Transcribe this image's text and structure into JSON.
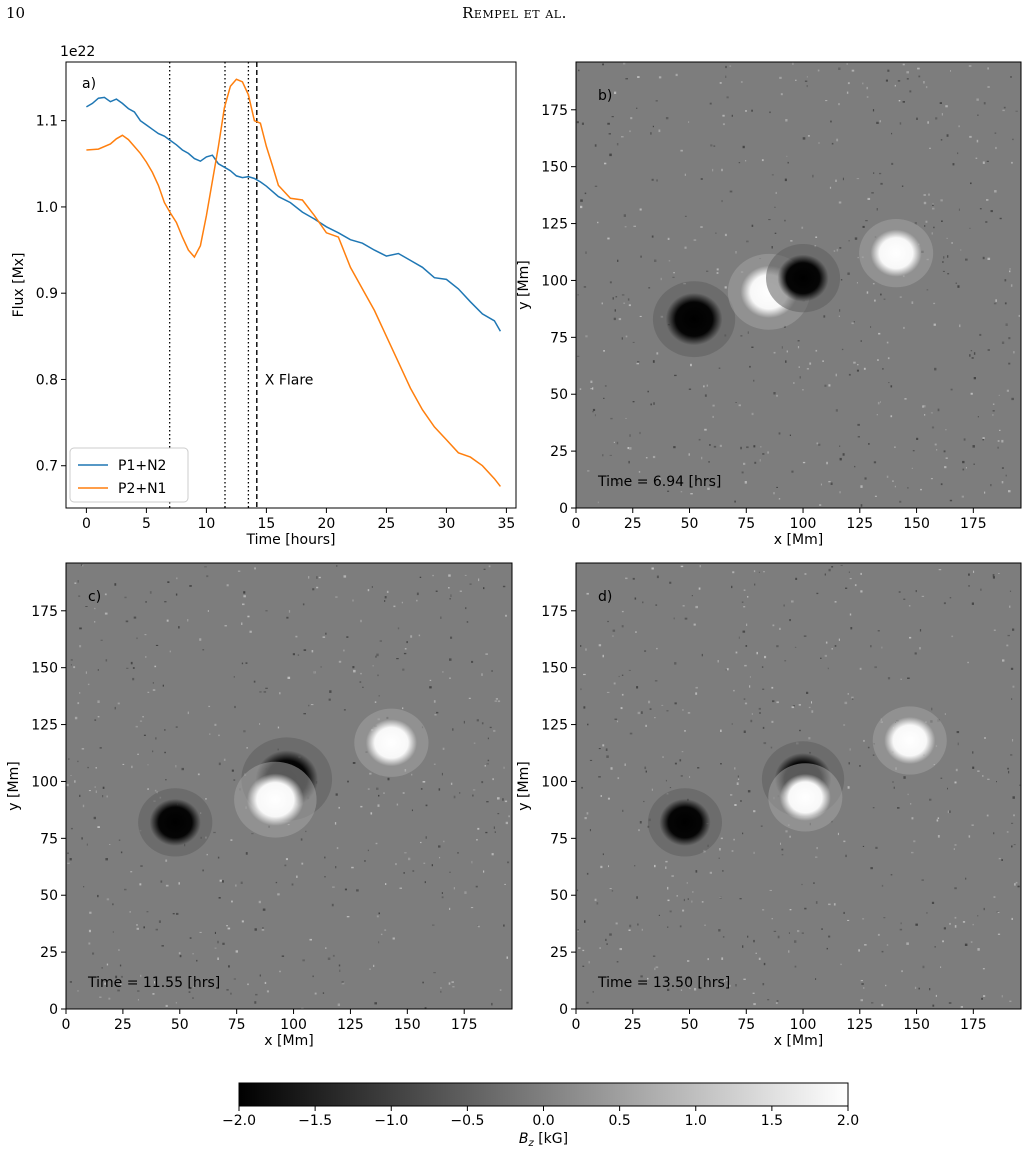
{
  "page": {
    "number": "10",
    "running_head": "Rempel et al."
  },
  "chart_data": [
    {
      "panel": "a)",
      "type": "line",
      "xlabel": "Time [hours]",
      "ylabel": "Flux [Mx]",
      "y_offset_label": "1e22",
      "xlim": [
        -1.7,
        35.8
      ],
      "ylim": [
        0.651,
        1.168
      ],
      "x_ticks": [
        0,
        5,
        10,
        15,
        20,
        25,
        30,
        35
      ],
      "y_ticks": [
        0.7,
        0.8,
        0.9,
        1.0,
        1.1
      ],
      "legend_location": "lower-left",
      "vlines_dotted": [
        6.94,
        11.55,
        13.5
      ],
      "vline_dashed": 14.2,
      "annotation": "X Flare",
      "series": [
        {
          "name": "P1+N2",
          "color": "#1f77b4",
          "x": [
            0,
            0.5,
            1,
            1.5,
            2,
            2.5,
            3,
            3.5,
            4,
            4.5,
            5,
            5.5,
            6,
            6.5,
            7,
            7.5,
            8,
            8.5,
            9,
            9.5,
            10,
            10.5,
            11,
            11.5,
            12,
            12.5,
            13,
            13.5,
            14,
            14.5,
            15,
            16,
            17,
            18,
            19,
            20,
            21,
            22,
            23,
            24,
            25,
            26,
            27,
            28,
            29,
            30,
            31,
            32,
            33,
            34,
            34.5
          ],
          "values": [
            1.116,
            1.12,
            1.126,
            1.127,
            1.122,
            1.125,
            1.12,
            1.114,
            1.11,
            1.1,
            1.095,
            1.09,
            1.085,
            1.082,
            1.077,
            1.072,
            1.066,
            1.062,
            1.056,
            1.053,
            1.058,
            1.06,
            1.05,
            1.046,
            1.042,
            1.036,
            1.034,
            1.035,
            1.033,
            1.029,
            1.024,
            1.012,
            1.005,
            0.994,
            0.986,
            0.977,
            0.97,
            0.962,
            0.958,
            0.95,
            0.943,
            0.946,
            0.938,
            0.93,
            0.918,
            0.916,
            0.905,
            0.89,
            0.876,
            0.868,
            0.856
          ]
        },
        {
          "name": "P2+N1",
          "color": "#ff7f0e",
          "x": [
            0,
            1,
            2,
            2.5,
            3,
            3.5,
            4,
            4.5,
            5,
            5.5,
            6,
            6.5,
            7,
            7.5,
            8,
            8.5,
            9,
            9.5,
            10,
            10.5,
            11,
            11.5,
            12,
            12.5,
            13,
            13.5,
            14,
            14.5,
            15,
            15.5,
            16,
            17,
            18,
            19,
            20,
            21,
            22,
            23,
            24,
            25,
            26,
            27,
            28,
            29,
            30,
            31,
            32,
            33,
            34,
            34.5
          ],
          "values": [
            1.066,
            1.067,
            1.073,
            1.079,
            1.083,
            1.078,
            1.07,
            1.062,
            1.052,
            1.04,
            1.025,
            1.005,
            0.993,
            0.982,
            0.965,
            0.95,
            0.942,
            0.955,
            0.99,
            1.03,
            1.07,
            1.115,
            1.14,
            1.148,
            1.145,
            1.13,
            1.1,
            1.097,
            1.07,
            1.048,
            1.025,
            1.01,
            1.008,
            0.99,
            0.97,
            0.965,
            0.93,
            0.905,
            0.88,
            0.85,
            0.82,
            0.79,
            0.765,
            0.745,
            0.73,
            0.715,
            0.71,
            0.7,
            0.685,
            0.676
          ]
        }
      ]
    },
    {
      "panel": "b)",
      "type": "heatmap",
      "annotation": "Time = 6.94 [hrs]",
      "xlabel": "x [Mm]",
      "ylabel": "y [Mm]",
      "xlim": [
        0,
        196
      ],
      "ylim": [
        0,
        196
      ],
      "x_ticks": [
        0,
        25,
        50,
        75,
        100,
        125,
        150,
        175
      ],
      "y_ticks": [
        0,
        25,
        50,
        75,
        100,
        125,
        150,
        175
      ],
      "spots": [
        {
          "polarity": "negative",
          "x": 52,
          "y": 83,
          "r": 10
        },
        {
          "polarity": "positive",
          "x": 85,
          "y": 95,
          "r": 10
        },
        {
          "polarity": "negative",
          "x": 100,
          "y": 101,
          "r": 9
        },
        {
          "polarity": "positive",
          "x": 141,
          "y": 112,
          "r": 9
        }
      ]
    },
    {
      "panel": "c)",
      "type": "heatmap",
      "annotation": "Time = 11.55 [hrs]",
      "xlabel": "x [Mm]",
      "ylabel": "y [Mm]",
      "xlim": [
        0,
        196
      ],
      "ylim": [
        0,
        196
      ],
      "x_ticks": [
        0,
        25,
        50,
        75,
        100,
        125,
        150,
        175
      ],
      "y_ticks": [
        0,
        25,
        50,
        75,
        100,
        125,
        150,
        175
      ],
      "spots": [
        {
          "polarity": "negative",
          "x": 48,
          "y": 82,
          "r": 9
        },
        {
          "polarity": "negative",
          "x": 97,
          "y": 101,
          "r": 11
        },
        {
          "polarity": "positive",
          "x": 92,
          "y": 92,
          "r": 10
        },
        {
          "polarity": "positive",
          "x": 143,
          "y": 117,
          "r": 9
        }
      ]
    },
    {
      "panel": "d)",
      "type": "heatmap",
      "annotation": "Time = 13.50 [hrs]",
      "xlabel": "x [Mm]",
      "ylabel": "y [Mm]",
      "xlim": [
        0,
        196
      ],
      "ylim": [
        0,
        196
      ],
      "x_ticks": [
        0,
        25,
        50,
        75,
        100,
        125,
        150,
        175
      ],
      "y_ticks": [
        0,
        25,
        50,
        75,
        100,
        125,
        150,
        175
      ],
      "spots": [
        {
          "polarity": "negative",
          "x": 48,
          "y": 82,
          "r": 9
        },
        {
          "polarity": "negative",
          "x": 100,
          "y": 101,
          "r": 10
        },
        {
          "polarity": "positive",
          "x": 101,
          "y": 93,
          "r": 9
        },
        {
          "polarity": "positive",
          "x": 147,
          "y": 118,
          "r": 9
        }
      ]
    }
  ],
  "colorbar": {
    "label": "B_z [kG]",
    "min": -2.0,
    "max": 2.0,
    "ticks": [
      "−2.0",
      "−1.5",
      "−1.0",
      "−0.5",
      "0.0",
      "0.5",
      "1.0",
      "1.5",
      "2.0"
    ],
    "colormap": "gray",
    "color_min": "#000000",
    "color_max": "#ffffff"
  }
}
